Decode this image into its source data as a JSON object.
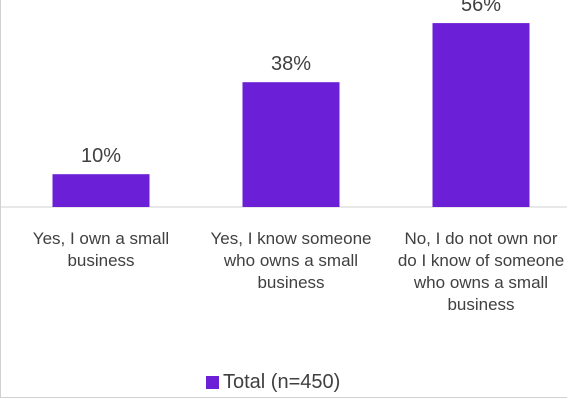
{
  "chart_data": {
    "type": "bar",
    "categories": [
      "Yes, I own a small business",
      "Yes, I know someone who owns a small business",
      "No, I do not own nor do I know of someone who owns a small business"
    ],
    "series": [
      {
        "name": "Total (n=450)",
        "values": [
          10,
          38,
          56
        ],
        "color": "#6b1fd6"
      }
    ],
    "data_labels": [
      "10%",
      "38%",
      "56%"
    ],
    "ylim": [
      0,
      60
    ],
    "grid": false,
    "legend": "bottom"
  }
}
